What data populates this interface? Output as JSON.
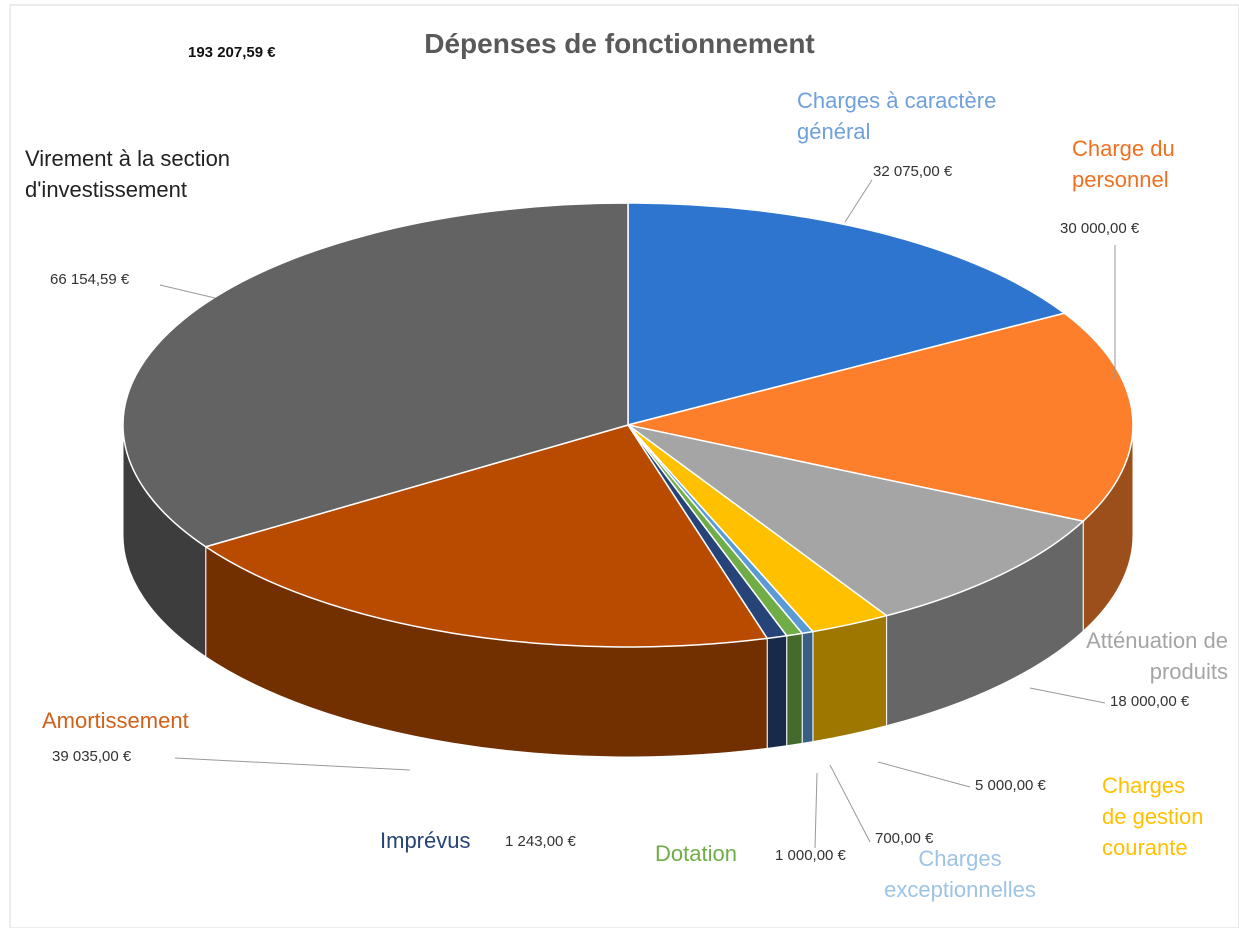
{
  "chart_data": {
    "type": "pie3d",
    "title": "Dépenses de fonctionnement",
    "annotation": "193 207,59 €",
    "categories": [
      "Charges à caractère général",
      "Charge du personnel",
      "Atténuation de produits",
      "Charges de gestion courante",
      "Charges exceptionnelles",
      "Dotation",
      "Imprévus",
      "Amortissement",
      "Virement à la section d'investissement"
    ],
    "values": [
      32075.0,
      30000.0,
      18000.0,
      5000.0,
      700.0,
      1000.0,
      1243.0,
      39035.0,
      66154.59
    ],
    "value_labels": [
      "32 075,00 €",
      "30 000,00 €",
      "18 000,00 €",
      "5 000,00 €",
      "700,00 €",
      "1 000,00 €",
      "1 243,00 €",
      "39 035,00 €",
      "66 154,59 €"
    ],
    "colors": [
      "#2e75d0",
      "#fd7f2c",
      "#a5a5a5",
      "#ffc000",
      "#5b9bd5",
      "#70ad47",
      "#264478",
      "#b84b00",
      "#636363"
    ],
    "label_colors": [
      "#6fa0dc",
      "#f07022",
      "#a5a5a5",
      "#ffc000",
      "#9dc3e6",
      "#70ad47",
      "#264478",
      "#d0611a",
      "#222222"
    ]
  }
}
